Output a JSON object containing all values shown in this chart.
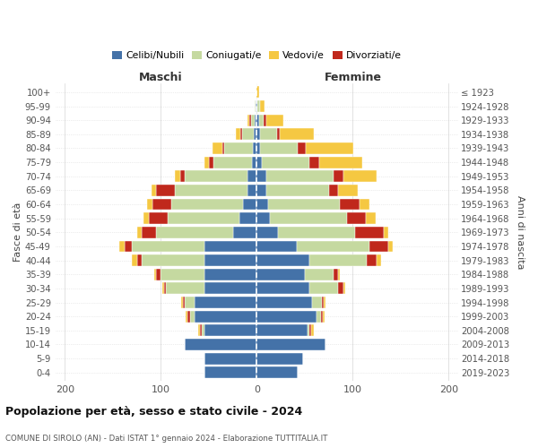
{
  "age_groups": [
    "0-4",
    "5-9",
    "10-14",
    "15-19",
    "20-24",
    "25-29",
    "30-34",
    "35-39",
    "40-44",
    "45-49",
    "50-54",
    "55-59",
    "60-64",
    "65-69",
    "70-74",
    "75-79",
    "80-84",
    "85-89",
    "90-94",
    "95-99",
    "100+"
  ],
  "birth_years": [
    "2019-2023",
    "2014-2018",
    "2009-2013",
    "2004-2008",
    "1999-2003",
    "1994-1998",
    "1989-1993",
    "1984-1988",
    "1979-1983",
    "1974-1978",
    "1969-1973",
    "1964-1968",
    "1959-1963",
    "1954-1958",
    "1949-1953",
    "1944-1948",
    "1939-1943",
    "1934-1938",
    "1929-1933",
    "1924-1928",
    "≤ 1923"
  ],
  "maschi_celibi": [
    55,
    55,
    75,
    55,
    65,
    65,
    55,
    55,
    55,
    55,
    25,
    18,
    14,
    10,
    10,
    5,
    4,
    3,
    2,
    1,
    0
  ],
  "maschi_coniugati": [
    0,
    0,
    0,
    2,
    5,
    10,
    40,
    45,
    65,
    75,
    80,
    75,
    75,
    75,
    65,
    40,
    30,
    12,
    4,
    1,
    0
  ],
  "maschi_vedovi": [
    0,
    0,
    0,
    2,
    2,
    2,
    2,
    2,
    5,
    5,
    5,
    5,
    5,
    5,
    5,
    5,
    10,
    5,
    2,
    0,
    0
  ],
  "maschi_divorziati": [
    0,
    0,
    0,
    2,
    2,
    2,
    2,
    5,
    5,
    8,
    15,
    20,
    20,
    20,
    5,
    5,
    2,
    2,
    2,
    0,
    0
  ],
  "femmine_nubili": [
    43,
    48,
    72,
    53,
    62,
    58,
    55,
    50,
    55,
    42,
    22,
    14,
    12,
    10,
    10,
    5,
    3,
    3,
    2,
    1,
    0
  ],
  "femmine_coniugate": [
    0,
    0,
    0,
    2,
    5,
    10,
    30,
    30,
    60,
    75,
    80,
    80,
    75,
    65,
    70,
    50,
    40,
    18,
    5,
    2,
    0
  ],
  "femmine_vedove": [
    0,
    0,
    0,
    2,
    2,
    2,
    2,
    2,
    5,
    5,
    5,
    10,
    10,
    20,
    35,
    45,
    50,
    35,
    18,
    5,
    2
  ],
  "femmine_divorziate": [
    0,
    0,
    0,
    2,
    2,
    2,
    5,
    5,
    10,
    20,
    30,
    20,
    20,
    10,
    10,
    10,
    8,
    3,
    3,
    0,
    0
  ],
  "color_celibi": "#4472a8",
  "color_coniugati": "#c5d9a0",
  "color_vedovi": "#f5c842",
  "color_divorziati": "#c0281c",
  "title": "Popolazione per età, sesso e stato civile - 2024",
  "subtitle": "COMUNE DI SIROLO (AN) - Dati ISTAT 1° gennaio 2024 - Elaborazione TUTTITALIA.IT",
  "legend_labels": [
    "Celibi/Nubili",
    "Coniugati/e",
    "Vedovi/e",
    "Divorziati/e"
  ],
  "label_maschi": "Maschi",
  "label_femmine": "Femmine",
  "label_fasce": "Fasce di età",
  "label_anni": "Anni di nascita",
  "xlim": 210,
  "bg_color": "#ffffff",
  "grid_color": "#cccccc"
}
